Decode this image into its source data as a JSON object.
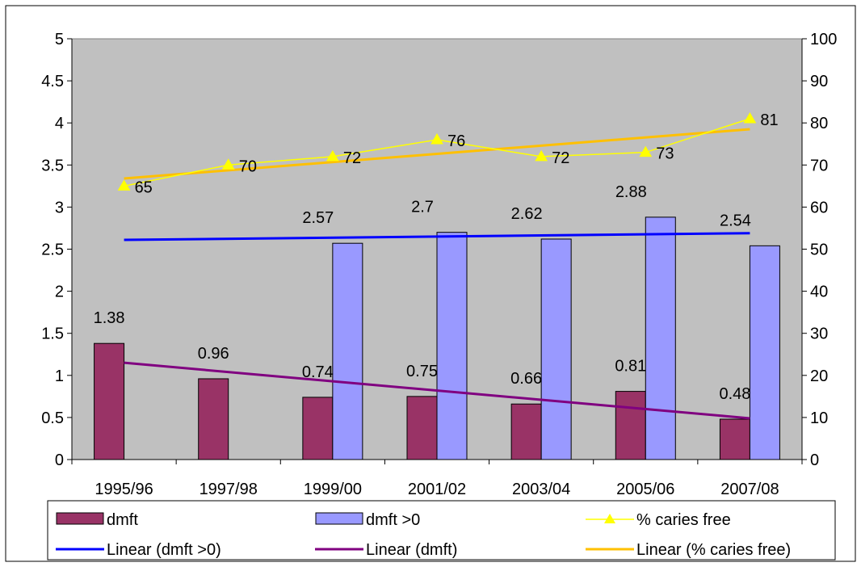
{
  "chart_data": {
    "type": "bar",
    "categories": [
      "1995/96",
      "1997/98",
      "1999/00",
      "2001/02",
      "2003/04",
      "2005/06",
      "2007/08"
    ],
    "y_left": {
      "range": [
        0,
        5
      ],
      "ticks": [
        "0",
        "0.5",
        "1",
        "1.5",
        "2",
        "2.5",
        "3",
        "3.5",
        "4",
        "4.5",
        "5"
      ]
    },
    "y_right": {
      "range": [
        0,
        100
      ],
      "ticks": [
        "0",
        "10",
        "20",
        "30",
        "40",
        "50",
        "60",
        "70",
        "80",
        "90",
        "100"
      ]
    },
    "series": [
      {
        "name": "dmft",
        "kind": "bar",
        "axis": "left",
        "color": "#993366",
        "values": [
          1.38,
          0.96,
          0.74,
          0.75,
          0.66,
          0.81,
          0.48
        ],
        "labels": [
          "1.38",
          "0.96",
          "0.74",
          "0.75",
          "0.66",
          "0.81",
          "0.48"
        ]
      },
      {
        "name": "dmft >0",
        "kind": "bar",
        "axis": "left",
        "color": "#9999ff",
        "values": [
          null,
          null,
          2.57,
          2.7,
          2.62,
          2.88,
          2.54
        ],
        "labels": [
          "",
          "",
          "2.57",
          "2.7",
          "2.62",
          "2.88",
          "2.54"
        ]
      },
      {
        "name": "% caries free",
        "kind": "line",
        "axis": "right",
        "color": "#ffff00",
        "marker": "triangle",
        "values": [
          65,
          70,
          72,
          76,
          72,
          73,
          81
        ],
        "labels": [
          "65",
          "70",
          "72",
          "76",
          "72",
          "73",
          "81"
        ]
      },
      {
        "name": "Linear (dmft >0)",
        "kind": "trendline",
        "axis": "left",
        "color": "#0000ff",
        "from": 2.61,
        "to": 2.69
      },
      {
        "name": "Linear (dmft)",
        "kind": "trendline",
        "axis": "left",
        "color": "#800080",
        "from": 1.15,
        "to": 0.49
      },
      {
        "name": "Linear (% caries free)",
        "kind": "trendline",
        "axis": "right",
        "color": "#ffc000",
        "from": 66.8,
        "to": 78.5
      }
    ],
    "legend": {
      "placement": "bottom",
      "items": [
        {
          "label": "dmft",
          "type": "bar",
          "color": "#993366"
        },
        {
          "label": "dmft >0",
          "type": "bar",
          "color": "#9999ff"
        },
        {
          "label": "% caries free",
          "type": "line-marker",
          "color": "#ffff00"
        },
        {
          "label": "Linear (dmft >0)",
          "type": "line",
          "color": "#0000ff"
        },
        {
          "label": "Linear (dmft)",
          "type": "line",
          "color": "#800080"
        },
        {
          "label": "Linear (% caries free)",
          "type": "line",
          "color": "#ffc000"
        }
      ]
    },
    "plot_background": "#c0c0c0",
    "grid": false
  }
}
